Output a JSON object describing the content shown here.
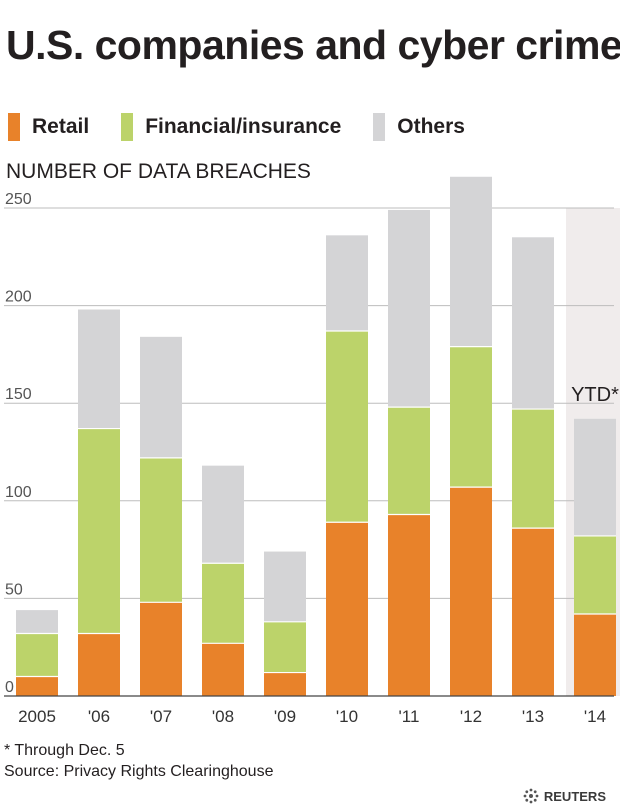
{
  "header": {
    "title": "U.S. companies and cyber crime"
  },
  "legend": [
    {
      "label": "Retail",
      "color": "#e8822a"
    },
    {
      "label": "Financial/insurance",
      "color": "#bcd36a"
    },
    {
      "label": "Others",
      "color": "#d4d4d6"
    }
  ],
  "chart_data": {
    "type": "bar",
    "stacked": true,
    "title": "U.S. companies and cyber crime",
    "ylabel": "NUMBER OF DATA BREACHES",
    "xlabel": "",
    "categories": [
      "2005",
      "'06",
      "'07",
      "'08",
      "'09",
      "'10",
      "'11",
      "'12",
      "'13",
      "'14"
    ],
    "series": [
      {
        "name": "Retail",
        "color": "#e8822a",
        "values": [
          10,
          32,
          48,
          27,
          12,
          89,
          93,
          107,
          86,
          42
        ]
      },
      {
        "name": "Financial/insurance",
        "color": "#bcd36a",
        "values": [
          22,
          105,
          74,
          41,
          26,
          98,
          55,
          72,
          61,
          40
        ]
      },
      {
        "name": "Others",
        "color": "#d4d4d6",
        "values": [
          12,
          61,
          62,
          50,
          36,
          49,
          101,
          87,
          88,
          60
        ]
      }
    ],
    "ylim": [
      0,
      250
    ],
    "yticks": [
      0,
      50,
      100,
      150,
      200,
      250
    ],
    "grid": true,
    "legend_position": "top-left",
    "annotation": {
      "category": "'14",
      "text": "YTD*",
      "highlight_color": "#f0ecec"
    }
  },
  "footnotes": {
    "note": "* Through Dec. 5",
    "source": "Source: Privacy Rights Clearinghouse"
  },
  "branding": {
    "name": "REUTERS"
  }
}
